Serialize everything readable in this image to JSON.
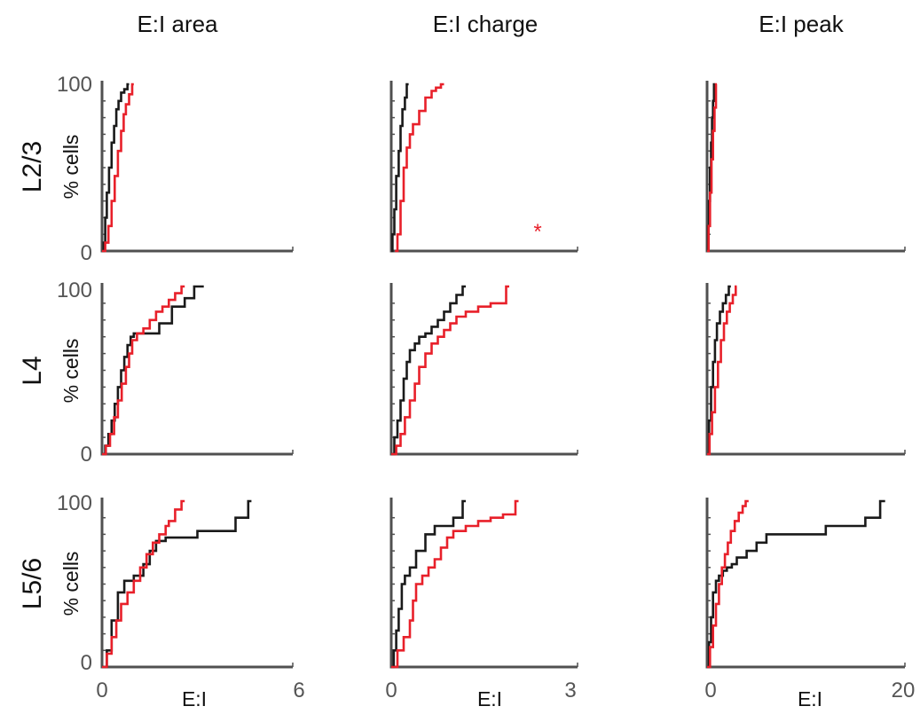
{
  "colors": {
    "black_series": "#1a1a1a",
    "red_series": "#e8202a",
    "axis": "#505050",
    "star": "#e8202a"
  },
  "columns": [
    "E:I area",
    "E:I charge",
    "E:I peak"
  ],
  "rows": [
    "L2/3",
    "L4",
    "L5/6"
  ],
  "chart_data": {
    "type": "line",
    "subtype": "cumulative step (CDF)",
    "layout": "3 rows x 3 columns small multiples",
    "ylabel": "% cells",
    "xlabel": "E:I",
    "ylim": [
      0,
      100
    ],
    "y_ticks": [
      "0",
      "100"
    ],
    "columns": [
      {
        "title": "E:I area",
        "xlim": [
          0,
          6
        ],
        "x_ticks": [
          "0",
          "6"
        ]
      },
      {
        "title": "E:I charge",
        "xlim": [
          0,
          3
        ],
        "x_ticks": [
          "0",
          "3"
        ]
      },
      {
        "title": "E:I peak",
        "xlim": [
          0,
          20
        ],
        "x_ticks": [
          "0",
          "20"
        ]
      }
    ],
    "panels": [
      {
        "row": "L2/3",
        "column": "E:I area",
        "annotation": "",
        "series": [
          {
            "color": "black",
            "x": [
              0.0,
              0.05,
              0.1,
              0.15,
              0.22,
              0.3,
              0.38,
              0.45,
              0.52,
              0.6,
              0.7,
              0.8,
              0.85
            ],
            "y": [
              0,
              5,
              20,
              35,
              50,
              65,
              75,
              85,
              90,
              95,
              97,
              100,
              100
            ]
          },
          {
            "color": "red",
            "x": [
              0.0,
              0.1,
              0.2,
              0.3,
              0.4,
              0.5,
              0.6,
              0.68,
              0.75,
              0.85,
              0.95,
              1.0
            ],
            "y": [
              0,
              5,
              15,
              30,
              45,
              60,
              72,
              82,
              88,
              94,
              100,
              100
            ]
          }
        ]
      },
      {
        "row": "L2/3",
        "column": "E:I charge",
        "annotation": "*",
        "series": [
          {
            "color": "black",
            "x": [
              0.0,
              0.02,
              0.05,
              0.08,
              0.12,
              0.15,
              0.18,
              0.22,
              0.25,
              0.28
            ],
            "y": [
              0,
              10,
              25,
              45,
              60,
              75,
              85,
              92,
              100,
              100
            ]
          },
          {
            "color": "red",
            "x": [
              0.06,
              0.1,
              0.15,
              0.2,
              0.25,
              0.3,
              0.35,
              0.45,
              0.55,
              0.65,
              0.72,
              0.8,
              0.85
            ],
            "y": [
              0,
              10,
              30,
              50,
              62,
              70,
              76,
              84,
              92,
              96,
              98,
              100,
              100
            ]
          }
        ]
      },
      {
        "row": "L2/3",
        "column": "E:I peak",
        "annotation": "",
        "series": [
          {
            "color": "black",
            "x": [
              0.0,
              0.1,
              0.2,
              0.3,
              0.4,
              0.5,
              0.6,
              0.7,
              0.8
            ],
            "y": [
              0,
              15,
              30,
              50,
              65,
              80,
              90,
              100,
              100
            ]
          },
          {
            "color": "red",
            "x": [
              0.0,
              0.15,
              0.3,
              0.45,
              0.6,
              0.75,
              0.9,
              1.0
            ],
            "y": [
              0,
              15,
              35,
              55,
              72,
              86,
              100,
              100
            ]
          }
        ]
      },
      {
        "row": "L4",
        "column": "E:I area",
        "annotation": "",
        "series": [
          {
            "color": "black",
            "x": [
              0.0,
              0.1,
              0.2,
              0.3,
              0.4,
              0.5,
              0.6,
              0.7,
              0.8,
              0.9,
              1.0,
              1.1,
              1.3,
              1.6,
              1.8,
              2.0,
              2.2,
              2.6,
              2.9,
              3.2
            ],
            "y": [
              0,
              5,
              12,
              20,
              30,
              40,
              50,
              58,
              65,
              70,
              72,
              72,
              72,
              72,
              78,
              78,
              88,
              93,
              100,
              100
            ]
          },
          {
            "color": "red",
            "x": [
              0.0,
              0.12,
              0.25,
              0.38,
              0.5,
              0.62,
              0.75,
              0.85,
              0.95,
              1.1,
              1.3,
              1.5,
              1.7,
              1.9,
              2.1,
              2.3,
              2.5,
              2.6
            ],
            "y": [
              0,
              5,
              12,
              22,
              32,
              42,
              52,
              60,
              68,
              72,
              75,
              80,
              85,
              88,
              92,
              96,
              100,
              100
            ]
          }
        ]
      },
      {
        "row": "L4",
        "column": "E:I charge",
        "annotation": "",
        "series": [
          {
            "color": "black",
            "x": [
              0.0,
              0.05,
              0.1,
              0.15,
              0.2,
              0.25,
              0.3,
              0.38,
              0.45,
              0.55,
              0.65,
              0.75,
              0.85,
              0.95,
              1.05,
              1.15,
              1.2
            ],
            "y": [
              0,
              10,
              20,
              32,
              45,
              55,
              62,
              66,
              70,
              72,
              76,
              80,
              85,
              90,
              95,
              100,
              100
            ]
          },
          {
            "color": "red",
            "x": [
              0.0,
              0.08,
              0.15,
              0.22,
              0.3,
              0.38,
              0.45,
              0.55,
              0.65,
              0.75,
              0.85,
              0.95,
              1.05,
              1.2,
              1.4,
              1.6,
              1.85,
              1.9
            ],
            "y": [
              0,
              5,
              12,
              22,
              32,
              42,
              52,
              60,
              66,
              70,
              74,
              78,
              82,
              85,
              88,
              90,
              100,
              100
            ]
          }
        ]
      },
      {
        "row": "L4",
        "column": "E:I peak",
        "annotation": "",
        "series": [
          {
            "color": "black",
            "x": [
              0.0,
              0.2,
              0.4,
              0.6,
              0.8,
              1.0,
              1.3,
              1.6,
              1.9,
              2.2,
              2.4
            ],
            "y": [
              0,
              20,
              40,
              55,
              68,
              78,
              85,
              90,
              95,
              100,
              100
            ]
          },
          {
            "color": "red",
            "x": [
              0.0,
              0.25,
              0.5,
              0.8,
              1.1,
              1.4,
              1.7,
              2.0,
              2.3,
              2.6,
              2.9,
              3.0
            ],
            "y": [
              0,
              12,
              25,
              40,
              55,
              68,
              78,
              85,
              90,
              95,
              100,
              100
            ]
          }
        ]
      },
      {
        "row": "L5/6",
        "column": "E:I area",
        "annotation": "",
        "series": [
          {
            "color": "black",
            "x": [
              0.0,
              0.15,
              0.3,
              0.5,
              0.7,
              1.0,
              1.3,
              1.5,
              1.7,
              2.0,
              2.5,
              3.0,
              3.6,
              4.2,
              4.6,
              4.7
            ],
            "y": [
              0,
              10,
              28,
              45,
              52,
              55,
              62,
              70,
              76,
              78,
              78,
              82,
              82,
              90,
              100,
              100
            ]
          },
          {
            "color": "red",
            "x": [
              0.0,
              0.15,
              0.3,
              0.45,
              0.6,
              0.8,
              1.0,
              1.2,
              1.4,
              1.6,
              1.8,
              2.0,
              2.1,
              2.3,
              2.5,
              2.6
            ],
            "y": [
              0,
              8,
              18,
              28,
              38,
              45,
              52,
              60,
              68,
              75,
              80,
              85,
              88,
              95,
              100,
              100
            ]
          }
        ]
      },
      {
        "row": "L5/6",
        "column": "E:I charge",
        "annotation": "",
        "series": [
          {
            "color": "black",
            "x": [
              0.0,
              0.04,
              0.08,
              0.12,
              0.17,
              0.22,
              0.3,
              0.4,
              0.55,
              0.7,
              0.85,
              1.0,
              1.15,
              1.2
            ],
            "y": [
              0,
              10,
              22,
              35,
              50,
              55,
              60,
              70,
              80,
              85,
              85,
              90,
              100,
              100
            ]
          },
          {
            "color": "red",
            "x": [
              0.0,
              0.1,
              0.2,
              0.3,
              0.35,
              0.4,
              0.5,
              0.6,
              0.7,
              0.8,
              0.9,
              1.0,
              1.2,
              1.4,
              1.6,
              1.8,
              2.0,
              2.05
            ],
            "y": [
              0,
              10,
              18,
              28,
              40,
              50,
              55,
              60,
              65,
              72,
              78,
              82,
              85,
              88,
              90,
              92,
              100,
              100
            ]
          }
        ]
      },
      {
        "row": "L5/6",
        "column": "E:I peak",
        "annotation": "",
        "series": [
          {
            "color": "black",
            "x": [
              0.0,
              0.2,
              0.4,
              0.6,
              0.9,
              1.2,
              1.6,
              2.0,
              2.5,
              3.0,
              4.0,
              5.0,
              6.0,
              8.0,
              10.0,
              12.0,
              14.0,
              16.0,
              17.5,
              18.0
            ],
            "y": [
              0,
              15,
              30,
              45,
              52,
              55,
              58,
              60,
              62,
              66,
              70,
              75,
              80,
              80,
              80,
              85,
              85,
              90,
              100,
              100
            ]
          },
          {
            "color": "red",
            "x": [
              0.0,
              0.3,
              0.6,
              0.9,
              1.2,
              1.5,
              1.8,
              2.1,
              2.4,
              2.8,
              3.2,
              3.6,
              3.9,
              4.2
            ],
            "y": [
              0,
              12,
              25,
              38,
              50,
              60,
              68,
              75,
              82,
              88,
              93,
              97,
              100,
              100
            ]
          }
        ]
      }
    ]
  }
}
